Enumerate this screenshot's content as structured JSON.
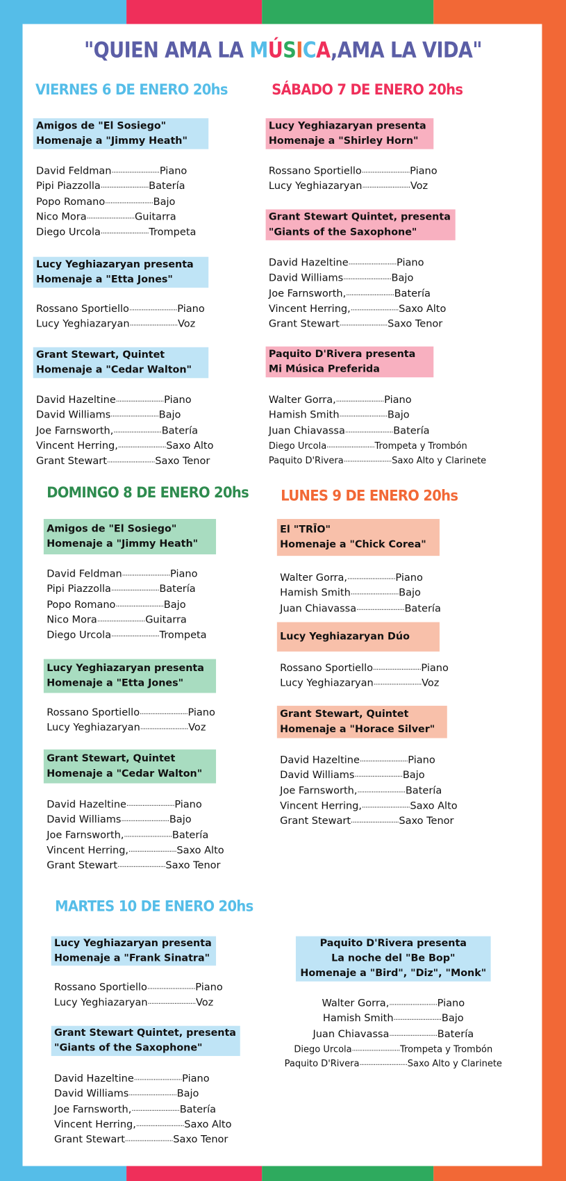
{
  "colors": {
    "blue": "#55bde8",
    "red": "#ef2f5a",
    "green": "#2eaa5e",
    "orange": "#f26836",
    "title": "#5b5ea6"
  },
  "title": {
    "before": "\"QUIEN AMA LA ",
    "musica_letters": [
      "M",
      "Ú",
      "S",
      "I",
      "C",
      "A"
    ],
    "musica_colors": [
      "#55bde8",
      "#ef2f5a",
      "#2eaa5e",
      "#f26836",
      "#55bde8",
      "#ef2f5a"
    ],
    "after": ",AMA LA VIDA\""
  },
  "days": [
    {
      "label": "VIERNES 6 DE ENERO 20hs",
      "color": "#55bde8",
      "box_color": "#bfe4f6",
      "sessions": [
        {
          "title": [
            "Amigos de \"El Sosiego\"",
            "Homenaje a \"Jimmy Heath\""
          ],
          "musicians": [
            {
              "name": "David Feldman",
              "role": "Piano"
            },
            {
              "name": "Pipi Piazzolla",
              "role": "Batería"
            },
            {
              "name": "Popo Romano",
              "role": "Bajo"
            },
            {
              "name": "Nico Mora",
              "role": "Guitarra"
            },
            {
              "name": "Diego Urcola",
              "role": "Trompeta"
            }
          ]
        },
        {
          "title": [
            "Lucy Yeghiazaryan presenta",
            "Homenaje a \"Etta Jones\""
          ],
          "musicians": [
            {
              "name": "Rossano Sportiello",
              "role": "Piano"
            },
            {
              "name": "Lucy Yeghiazaryan",
              "role": "Voz"
            }
          ]
        },
        {
          "title": [
            "Grant Stewart, Quintet",
            "Homenaje a \"Cedar Walton\""
          ],
          "musicians": [
            {
              "name": "David Hazeltine",
              "role": "Piano"
            },
            {
              "name": "David Williams",
              "role": "Bajo"
            },
            {
              "name": "Joe Farnsworth,",
              "role": "Batería"
            },
            {
              "name": "Vincent Herring,",
              "role": "Saxo Alto"
            },
            {
              "name": "Grant Stewart",
              "role": "Saxo Tenor"
            }
          ]
        }
      ]
    },
    {
      "label": "SÁBADO 7 DE ENERO 20hs",
      "color": "#ef2f5a",
      "box_color": "#f8b0c0",
      "sessions": [
        {
          "title": [
            "Lucy Yeghiazaryan presenta",
            "Homenaje a \"Shirley Horn\""
          ],
          "musicians": [
            {
              "name": "Rossano Sportiello",
              "role": "Piano"
            },
            {
              "name": "Lucy Yeghiazaryan",
              "role": "Voz"
            }
          ]
        },
        {
          "title": [
            "Grant Stewart Quintet, presenta",
            "\"Giants of the Saxophone\""
          ],
          "musicians": [
            {
              "name": "David Hazeltine",
              "role": "Piano"
            },
            {
              "name": "David Williams",
              "role": "Bajo"
            },
            {
              "name": "Joe Farnsworth,",
              "role": "Batería"
            },
            {
              "name": "Vincent Herring,",
              "role": "Saxo Alto"
            },
            {
              "name": "Grant Stewart",
              "role": "Saxo Tenor"
            }
          ]
        },
        {
          "title": [
            "Paquito D'Rivera presenta",
            "Mi Música Preferida"
          ],
          "musicians": [
            {
              "name": "Walter Gorra,",
              "role": "Piano"
            },
            {
              "name": "Hamish Smith",
              "role": "Bajo"
            },
            {
              "name": "Juan Chiavassa",
              "role": "Batería"
            },
            {
              "name": "Diego Urcola",
              "role": "Trompeta y Trombón"
            },
            {
              "name": "Paquito D'Rivera",
              "role": "Saxo Alto y Clarinete"
            }
          ]
        }
      ]
    },
    {
      "label": "DOMINGO 8 DE ENERO 20hs",
      "color": "#2e8b4e",
      "box_color": "#a8dcc0",
      "sessions": [
        {
          "title": [
            "Amigos de \"El Sosiego\"",
            "Homenaje a \"Jimmy Heath\""
          ],
          "musicians": [
            {
              "name": "David Feldman",
              "role": "Piano"
            },
            {
              "name": "Pipi Piazzolla",
              "role": "Batería"
            },
            {
              "name": "Popo Romano",
              "role": "Bajo"
            },
            {
              "name": "Nico Mora",
              "role": "Guitarra"
            },
            {
              "name": "Diego Urcola",
              "role": "Trompeta"
            }
          ]
        },
        {
          "title": [
            "Lucy Yeghiazaryan presenta",
            "Homenaje a \"Etta Jones\""
          ],
          "musicians": [
            {
              "name": "Rossano Sportiello",
              "role": "Piano"
            },
            {
              "name": "Lucy Yeghiazaryan",
              "role": "Voz"
            }
          ]
        },
        {
          "title": [
            "Grant Stewart, Quintet",
            "Homenaje a \"Cedar Walton\""
          ],
          "musicians": [
            {
              "name": "David Hazeltine",
              "role": "Piano"
            },
            {
              "name": "David Williams",
              "role": "Bajo"
            },
            {
              "name": "Joe Farnsworth,",
              "role": "Batería"
            },
            {
              "name": "Vincent Herring,",
              "role": "Saxo Alto"
            },
            {
              "name": "Grant Stewart",
              "role": "Saxo Tenor"
            }
          ]
        }
      ]
    },
    {
      "label": "LUNES 9 DE ENERO 20hs",
      "color": "#f26836",
      "box_color": "#f8c0aa",
      "sessions": [
        {
          "title": [
            "El \"TRĪO\"",
            "Homenaje a \"Chick Corea\""
          ],
          "musicians": [
            {
              "name": "Walter Gorra,",
              "role": "Piano"
            },
            {
              "name": "Hamish Smith",
              "role": "Bajo"
            },
            {
              "name": "Juan Chiavassa",
              "role": "Batería"
            }
          ]
        },
        {
          "title": [
            "Lucy Yeghiazaryan Dúo"
          ],
          "musicians": [
            {
              "name": "Rossano Sportiello",
              "role": "Piano"
            },
            {
              "name": "Lucy Yeghiazaryan",
              "role": "Voz"
            }
          ]
        },
        {
          "title": [
            "Grant Stewart, Quintet",
            "Homenaje a \"Horace Silver\""
          ],
          "musicians": [
            {
              "name": "David Hazeltine",
              "role": "Piano"
            },
            {
              "name": "David Williams",
              "role": "Bajo"
            },
            {
              "name": "Joe Farnsworth,",
              "role": "Batería"
            },
            {
              "name": "Vincent Herring,",
              "role": "Saxo Alto"
            },
            {
              "name": "Grant Stewart",
              "role": "Saxo Tenor"
            }
          ]
        }
      ]
    },
    {
      "label": "MARTES 10 DE ENERO 20hs",
      "color": "#55bde8",
      "box_color": "#bfe4f6",
      "sessions": [
        {
          "title": [
            "Lucy Yeghiazaryan presenta",
            "Homenaje a \"Frank Sinatra\""
          ],
          "musicians": [
            {
              "name": "Rossano Sportiello",
              "role": "Piano"
            },
            {
              "name": "Lucy Yeghiazaryan",
              "role": "Voz"
            }
          ]
        },
        {
          "title": [
            "Grant Stewart Quintet, presenta",
            "\"Giants of the Saxophone\""
          ],
          "musicians": [
            {
              "name": "David Hazeltine",
              "role": "Piano"
            },
            {
              "name": "David Williams",
              "role": "Bajo"
            },
            {
              "name": "Joe Farnsworth,",
              "role": "Batería"
            },
            {
              "name": "Vincent Herring,",
              "role": "Saxo Alto"
            },
            {
              "name": "Grant Stewart",
              "role": "Saxo Tenor"
            }
          ]
        },
        {
          "title": [
            "Paquito D'Rivera presenta",
            "La noche del \"Be Bop\"",
            "Homenaje a \"Bird\", \"Diz\", \"Monk\""
          ],
          "musicians": [
            {
              "name": "Walter Gorra,",
              "role": "Piano"
            },
            {
              "name": "Hamish Smith",
              "role": "Bajo"
            },
            {
              "name": "Juan Chiavassa",
              "role": "Batería"
            },
            {
              "name": "Diego Urcola",
              "role": "Trompeta y Trombón"
            },
            {
              "name": "Paquito D'Rivera",
              "role": "Saxo Alto y Clarinete"
            }
          ]
        }
      ]
    }
  ]
}
